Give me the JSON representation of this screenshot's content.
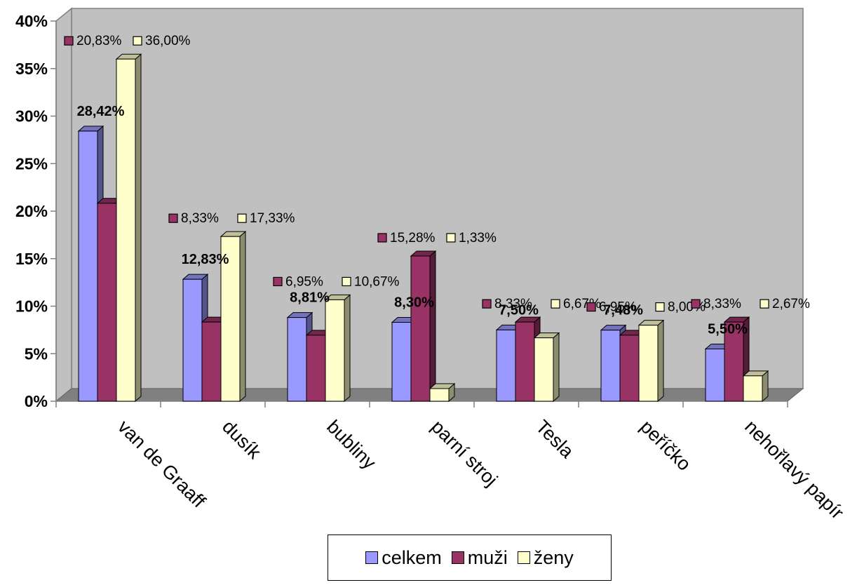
{
  "chart_data": {
    "type": "bar",
    "title": "",
    "xlabel": "",
    "ylabel": "",
    "ylim": [
      0,
      40
    ],
    "y_ticks": [
      "0%",
      "5%",
      "10%",
      "15%",
      "20%",
      "25%",
      "30%",
      "35%",
      "40%"
    ],
    "y_tick_values": [
      0,
      5,
      10,
      15,
      20,
      25,
      30,
      35,
      40
    ],
    "categories": [
      "van de Graaff",
      "dusík",
      "bubliny",
      "parní stroj",
      "Tesla",
      "peříčko",
      "nehořlavý papír"
    ],
    "series": [
      {
        "name": "celkem",
        "color": "#9999ff",
        "values": [
          28.42,
          12.83,
          8.81,
          8.3,
          7.5,
          7.48,
          5.5
        ],
        "labels": [
          "28,42%",
          "12,83%",
          "8,81%",
          "8,30%",
          "7,50%",
          "7,48%",
          "5,50%"
        ]
      },
      {
        "name": "muži",
        "color": "#993366",
        "values": [
          20.83,
          8.33,
          6.95,
          15.28,
          8.33,
          6.95,
          8.33
        ],
        "labels": [
          "20,83%",
          "8,33%",
          "6,95%",
          "15,28%",
          "8,33%",
          "6,95%",
          "8,33%"
        ]
      },
      {
        "name": "ženy",
        "color": "#ffffcc",
        "values": [
          36.0,
          17.33,
          10.67,
          1.33,
          6.67,
          8.0,
          2.67
        ],
        "labels": [
          "36,00%",
          "17,33%",
          "10,67%",
          "1,33%",
          "6,67%",
          "8,00%",
          "2,67%"
        ]
      }
    ],
    "legend_position": "bottom",
    "grid": false,
    "colors": {
      "wall": "#c0c0c0",
      "floor": "#808080",
      "axis": "#808080"
    }
  }
}
